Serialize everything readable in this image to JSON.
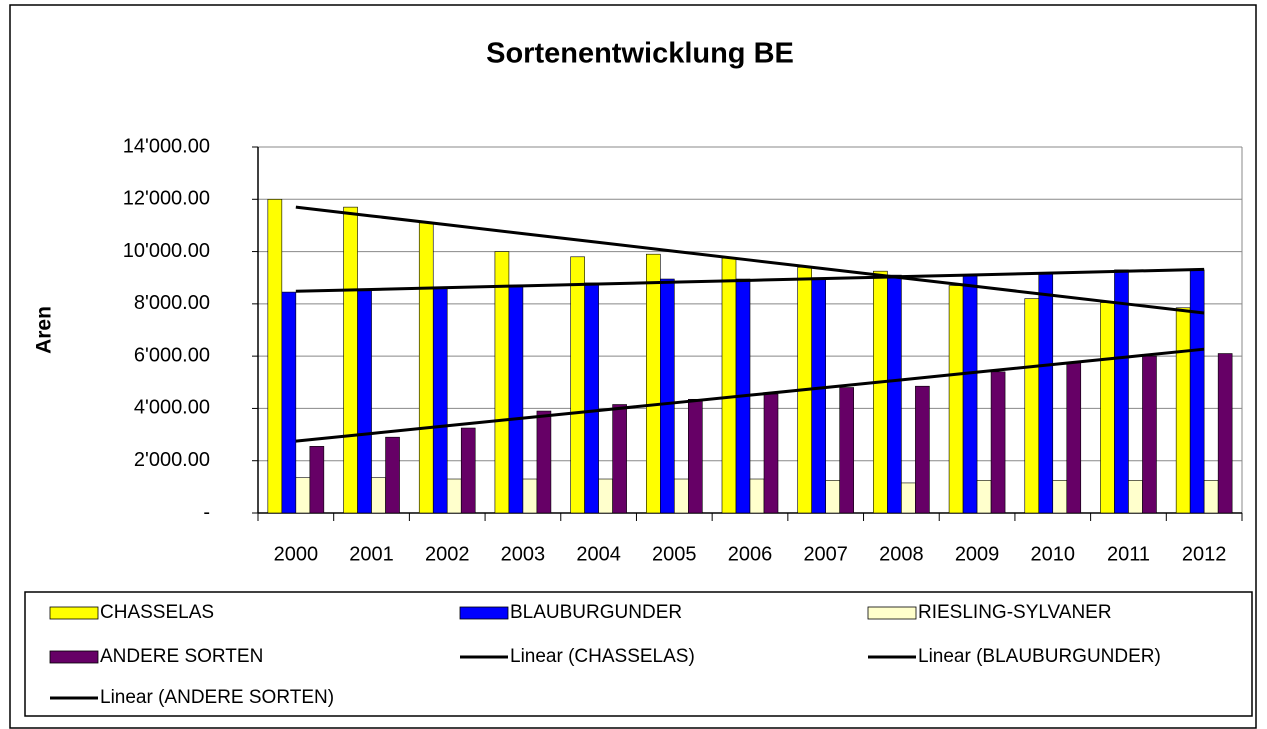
{
  "chart_data": {
    "type": "bar",
    "title": "Sortenentwicklung BE",
    "y_label": "Aren",
    "categories": [
      "2000",
      "2001",
      "2002",
      "2003",
      "2004",
      "2005",
      "2006",
      "2007",
      "2008",
      "2009",
      "2010",
      "2011",
      "2012"
    ],
    "series": [
      {
        "name": "CHASSELAS",
        "color": "#ffff00",
        "values": [
          12000,
          11700,
          11100,
          10000,
          9800,
          9900,
          9750,
          9400,
          9250,
          8700,
          8200,
          8050,
          7850
        ]
      },
      {
        "name": "BLAUBURGUNDER",
        "color": "#0000ff",
        "values": [
          8450,
          8500,
          8600,
          8700,
          8800,
          8950,
          8950,
          9000,
          9100,
          9100,
          9200,
          9300,
          9300
        ]
      },
      {
        "name": "RIESLING-SYLVANER",
        "color": "#ffffcc",
        "values": [
          1350,
          1350,
          1300,
          1300,
          1300,
          1300,
          1300,
          1250,
          1150,
          1250,
          1250,
          1250,
          1250
        ]
      },
      {
        "name": "ANDERE SORTEN",
        "color": "#660066",
        "values": [
          2550,
          2900,
          3250,
          3900,
          4150,
          4350,
          4550,
          4800,
          4850,
          5400,
          5750,
          6000,
          6100
        ]
      },
      {
        "name": "Linear (CHASSELAS)",
        "type": "line",
        "color": "#000000",
        "values": [
          11700,
          11362.5,
          11025,
          10687.5,
          10350,
          10012.5,
          9675,
          9337.5,
          9000,
          8662.5,
          8325,
          7987.5,
          7650
        ]
      },
      {
        "name": "Linear (BLAUBURGUNDER)",
        "type": "line",
        "color": "#000000",
        "values": [
          8480,
          8550,
          8620,
          8690,
          8760,
          8830,
          8900,
          8970,
          9040,
          9110,
          9180,
          9250,
          9320
        ]
      },
      {
        "name": "Linear (ANDERE SORTEN)",
        "type": "line",
        "color": "#000000",
        "values": [
          2750,
          3043,
          3336,
          3629,
          3922,
          4215,
          4508,
          4801,
          5094,
          5387,
          5680,
          5973,
          6266
        ]
      }
    ],
    "ylim": [
      0,
      14000
    ],
    "yticks": [
      {
        "value": 0,
        "label": "-"
      },
      {
        "value": 2000,
        "label": "2'000.00"
      },
      {
        "value": 4000,
        "label": "4'000.00"
      },
      {
        "value": 6000,
        "label": "6'000.00"
      },
      {
        "value": 8000,
        "label": "8'000.00"
      },
      {
        "value": 10000,
        "label": "10'000.00"
      },
      {
        "value": 12000,
        "label": "12'000.00"
      },
      {
        "value": 14000,
        "label": "14'000.00"
      }
    ],
    "grid": true,
    "legend": "bottom"
  }
}
